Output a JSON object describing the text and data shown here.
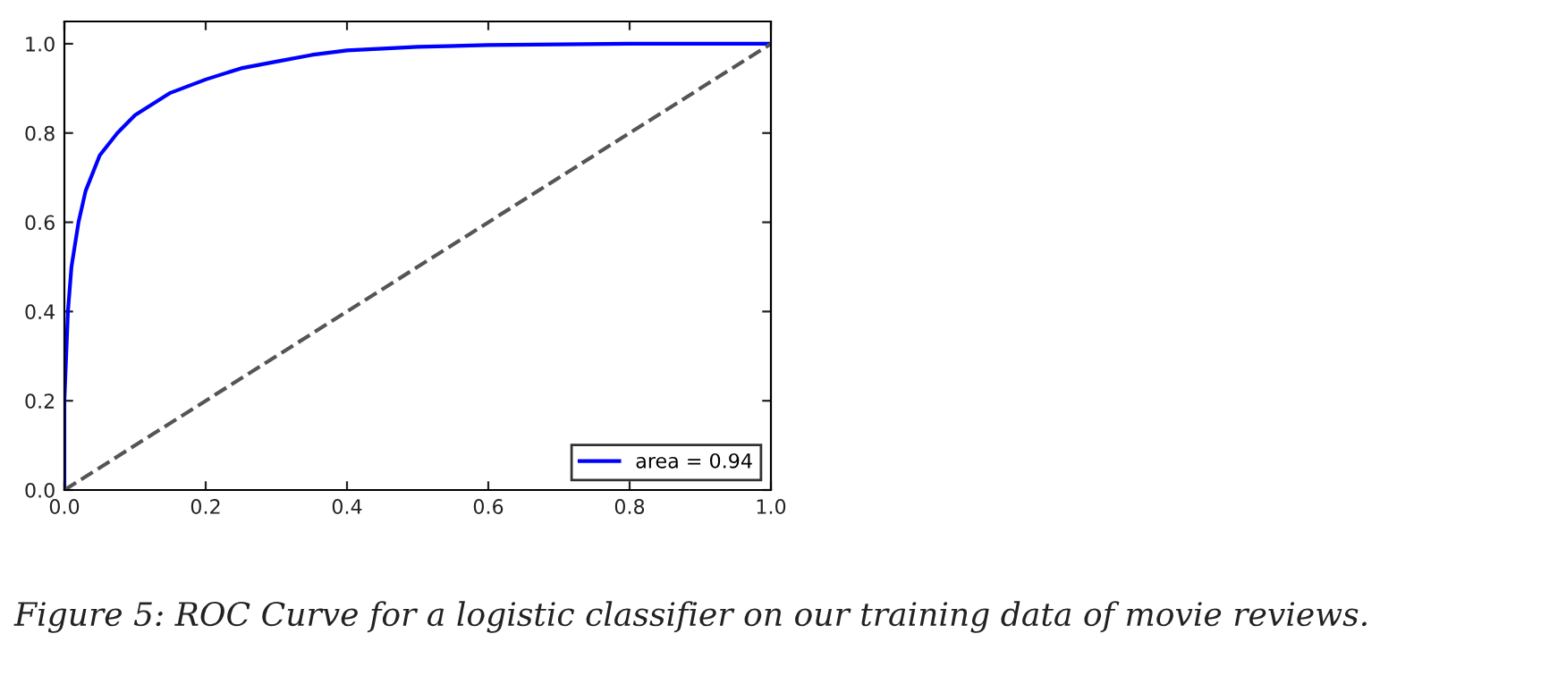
{
  "chart_data": {
    "type": "line",
    "xlim": [
      0,
      1
    ],
    "ylim": [
      0,
      1.05
    ],
    "xticks": [
      {
        "value": 0,
        "label": "0.0"
      },
      0.2,
      0.4,
      0.6,
      0.8,
      {
        "value": 1,
        "label": "1.0"
      }
    ],
    "yticks": [
      {
        "value": 0,
        "label": "0.0"
      },
      0.2,
      0.4,
      0.6,
      0.8,
      {
        "value": 1,
        "label": "1.0"
      }
    ],
    "grid": false,
    "legend": "bottom right",
    "series": [
      {
        "name": "area = 0.94",
        "color": "#0000ff",
        "line_style": "solid",
        "x": [
          0,
          0,
          0.005,
          0.01,
          0.02,
          0.03,
          0.05,
          0.075,
          0.1,
          0.15,
          0.2,
          0.25,
          0.3,
          0.35,
          0.4,
          0.5,
          0.6,
          0.8,
          1.0
        ],
        "values": [
          0,
          0.2,
          0.4,
          0.5,
          0.6,
          0.67,
          0.75,
          0.8,
          0.84,
          0.89,
          0.92,
          0.945,
          0.96,
          0.975,
          0.985,
          0.993,
          0.997,
          1.0,
          1.0
        ]
      },
      {
        "color": "#555555",
        "line_style": "dashed",
        "x": [
          0,
          1
        ],
        "values": [
          0,
          1
        ]
      }
    ],
    "annotations": [
      "Figure 5: ROC Curve for a logistic classifier on our training data of movie reviews."
    ]
  }
}
